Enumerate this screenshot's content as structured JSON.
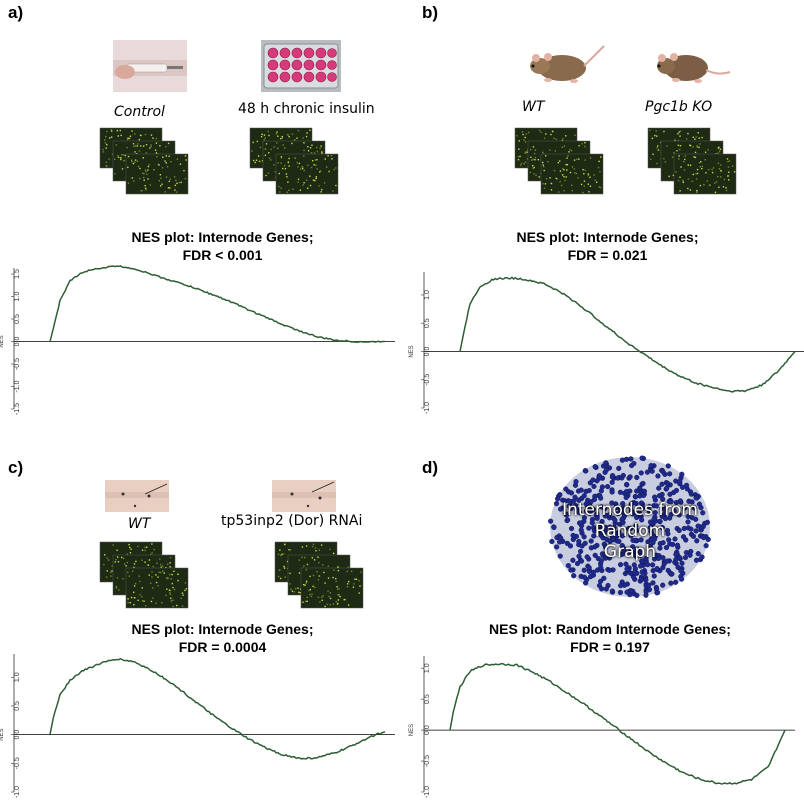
{
  "panels": [
    {
      "label": "a)",
      "conditions": [
        "Control",
        "48 h chronic insulin"
      ],
      "title_line1": "NES plot: Internode Genes;",
      "title_line2": "FDR < 0.001"
    },
    {
      "label": "b)",
      "conditions": [
        "WT",
        "Pgc1b KO"
      ],
      "title_line1": "NES plot: Internode Genes;",
      "title_line2": "FDR = 0.021"
    },
    {
      "label": "c)",
      "conditions": [
        "WT",
        "tp53inp2 (Dor) RNAi"
      ],
      "title_line1": "NES plot: Internode Genes;",
      "title_line2": "FDR = 0.0004"
    },
    {
      "label": "d)",
      "graph_text": [
        "Internodes from",
        "Random",
        "Graph"
      ],
      "title_line1": "NES plot: Random Internode Genes;",
      "title_line2": "FDR = 0.197"
    }
  ],
  "colors": {
    "curve": "#2e5e35",
    "axis": "#333333",
    "heatmap_bg": "#1f2a14",
    "dot_blue": "#1f2a8c"
  },
  "chart_data": [
    {
      "type": "line",
      "ylabel": "NES",
      "yticks": [
        "1.5",
        "1.0",
        "0.5",
        "0.0",
        "-0.5",
        "-1.0",
        "-1.5"
      ],
      "ylim": [
        -1.5,
        1.5
      ],
      "x": [
        0,
        0.01,
        0.03,
        0.06,
        0.1,
        0.15,
        0.2,
        0.25,
        0.3,
        0.35,
        0.4,
        0.45,
        0.5,
        0.55,
        0.6,
        0.65,
        0.7,
        0.75,
        0.8,
        0.85,
        0.9,
        0.95,
        1.0
      ],
      "series": [
        {
          "values": [
            0,
            0.3,
            0.9,
            1.35,
            1.55,
            1.63,
            1.68,
            1.62,
            1.5,
            1.38,
            1.27,
            1.14,
            1.0,
            0.85,
            0.68,
            0.52,
            0.36,
            0.22,
            0.1,
            0.03,
            0.0,
            -0.01,
            0.0
          ]
        }
      ]
    },
    {
      "type": "line",
      "ylabel": "NES",
      "yticks": [
        "1.0",
        "0.5",
        "0.0",
        "-0.5",
        "-1.0"
      ],
      "ylim": [
        -1.0,
        1.3
      ],
      "x": [
        0,
        0.01,
        0.03,
        0.06,
        0.1,
        0.15,
        0.2,
        0.25,
        0.3,
        0.35,
        0.4,
        0.45,
        0.5,
        0.55,
        0.6,
        0.65,
        0.7,
        0.75,
        0.8,
        0.85,
        0.9,
        0.95,
        1.0
      ],
      "series": [
        {
          "values": [
            0,
            0.3,
            0.85,
            1.15,
            1.28,
            1.3,
            1.27,
            1.2,
            1.05,
            0.85,
            0.62,
            0.38,
            0.15,
            -0.05,
            -0.25,
            -0.42,
            -0.55,
            -0.63,
            -0.7,
            -0.7,
            -0.6,
            -0.35,
            0.0
          ]
        }
      ]
    },
    {
      "type": "line",
      "ylabel": "NES",
      "yticks": [
        "1.0",
        "0.5",
        "0.0",
        "-0.5",
        "-1.0"
      ],
      "ylim": [
        -1.0,
        1.3
      ],
      "x": [
        0,
        0.01,
        0.03,
        0.06,
        0.1,
        0.15,
        0.2,
        0.25,
        0.3,
        0.35,
        0.4,
        0.45,
        0.5,
        0.55,
        0.6,
        0.65,
        0.7,
        0.75,
        0.8,
        0.85,
        0.9,
        0.95,
        1.0
      ],
      "series": [
        {
          "values": [
            0,
            0.3,
            0.7,
            0.95,
            1.12,
            1.24,
            1.32,
            1.27,
            1.13,
            0.95,
            0.73,
            0.5,
            0.28,
            0.08,
            -0.1,
            -0.25,
            -0.36,
            -0.42,
            -0.4,
            -0.32,
            -0.2,
            -0.05,
            0.05
          ]
        }
      ]
    },
    {
      "type": "line",
      "ylabel": "NES",
      "yticks": [
        "1.0",
        "0.5",
        "0.0",
        "-0.5",
        "-1.0"
      ],
      "ylim": [
        -1.0,
        1.1
      ],
      "x": [
        0,
        0.01,
        0.03,
        0.06,
        0.1,
        0.15,
        0.2,
        0.25,
        0.3,
        0.35,
        0.4,
        0.45,
        0.5,
        0.55,
        0.6,
        0.65,
        0.7,
        0.75,
        0.8,
        0.85,
        0.9,
        0.95,
        1.0
      ],
      "series": [
        {
          "values": [
            0,
            0.3,
            0.7,
            0.95,
            1.05,
            1.07,
            1.05,
            0.93,
            0.78,
            0.6,
            0.42,
            0.22,
            0.02,
            -0.18,
            -0.38,
            -0.55,
            -0.7,
            -0.8,
            -0.86,
            -0.86,
            -0.8,
            -0.6,
            0.0
          ]
        }
      ]
    }
  ]
}
